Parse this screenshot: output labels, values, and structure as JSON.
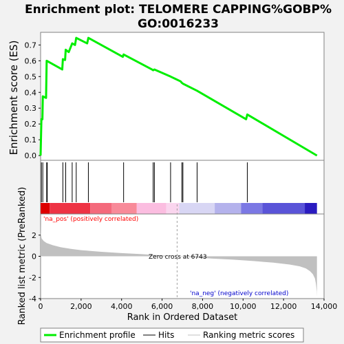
{
  "title_line1": "Enrichment plot: TELOMERE CAPPING%GOBP%",
  "title_line2": "GO:0016233",
  "colors": {
    "enrichment_line": "#00ee00",
    "hits": "#000000",
    "metric_fill": "#c0c0c0",
    "pos_text": "#ff0000",
    "neg_text": "#0000cc",
    "zero_line": "#a0a0a0"
  },
  "chart_data": [
    {
      "type": "line",
      "name": "enrichment-score",
      "ylabel": "Enrichment score (ES)",
      "xlim": [
        0,
        14000
      ],
      "ylim": [
        -0.03,
        0.78
      ],
      "yticks": [
        0.0,
        0.1,
        0.2,
        0.3,
        0.4,
        0.5,
        0.6,
        0.7
      ],
      "ytick_labels": [
        "0.0",
        "0.1",
        "0.2",
        "0.3",
        "0.4",
        "0.5",
        "0.6",
        "0.7"
      ],
      "x": [
        0,
        40,
        90,
        110,
        270,
        300,
        1070,
        1100,
        1210,
        1240,
        1390,
        1530,
        1560,
        1700,
        1760,
        2300,
        2360,
        4060,
        4100,
        5500,
        5560,
        5620,
        6420,
        6910,
        6980,
        7030,
        7730,
        10150,
        10210,
        13650
      ],
      "y": [
        0.0,
        0.23,
        0.23,
        0.375,
        0.365,
        0.6,
        0.545,
        0.61,
        0.605,
        0.67,
        0.655,
        0.7,
        0.71,
        0.7,
        0.745,
        0.71,
        0.745,
        0.625,
        0.64,
        0.545,
        0.54,
        0.545,
        0.5,
        0.47,
        0.46,
        0.455,
        0.41,
        0.23,
        0.26,
        0.0
      ],
      "grid": false
    },
    {
      "type": "hits",
      "name": "hits",
      "x": [
        40,
        110,
        300,
        330,
        1100,
        1240,
        1560,
        1760,
        2360,
        4100,
        5560,
        5620,
        6420,
        6980,
        7030,
        7730,
        10210
      ]
    },
    {
      "type": "heatmap",
      "name": "rank-color-bar",
      "x_edges": [
        0,
        450,
        2450,
        3500,
        4750,
        6200,
        6850,
        8600,
        9900,
        10950,
        13050,
        13650
      ],
      "colors": [
        "#dd0000",
        "#ee3344",
        "#f46a7c",
        "#f88a99",
        "#fbbde0",
        "#fad5ee",
        "#d8d6f4",
        "#b4b2ec",
        "#7b78e4",
        "#5a54d8",
        "#2a1bc0"
      ]
    },
    {
      "type": "area",
      "name": "ranked-list-metric",
      "ylabel": "Ranked list metric (PreRanked)",
      "xlabel": "Rank in Ordered Dataset",
      "xlim": [
        0,
        14000
      ],
      "ylim": [
        -4.0,
        4.0
      ],
      "yticks": [
        -4,
        -2,
        0,
        2
      ],
      "ytick_labels": [
        "-4",
        "-2",
        "0",
        "2"
      ],
      "xticks": [
        0,
        2000,
        4000,
        6000,
        8000,
        10000,
        12000,
        14000
      ],
      "xtick_labels": [
        "0",
        "2,000",
        "4,000",
        "6,000",
        "8,000",
        "10,000",
        "12,000",
        "14,000"
      ],
      "x": [
        0,
        10,
        50,
        150,
        300,
        600,
        1000,
        1500,
        2000,
        3000,
        4000,
        5000,
        6000,
        6743,
        7500,
        8500,
        9500,
        10500,
        11500,
        12300,
        12800,
        13100,
        13300,
        13450,
        13550,
        13600,
        13640,
        13650
      ],
      "y": [
        3.0,
        2.2,
        1.7,
        1.45,
        1.25,
        1.05,
        0.85,
        0.7,
        0.58,
        0.42,
        0.3,
        0.2,
        0.08,
        0.0,
        -0.1,
        -0.22,
        -0.32,
        -0.45,
        -0.6,
        -0.78,
        -0.95,
        -1.15,
        -1.4,
        -1.7,
        -2.1,
        -2.6,
        -3.3,
        -3.8
      ],
      "annotations": {
        "pos": "'na_pos' (positively correlated)",
        "neg": "'na_neg' (negatively correlated)",
        "zero_cross": "Zero cross at 6743"
      },
      "zero_cross": 6743
    }
  ],
  "legend": [
    {
      "label": "Enrichment profile",
      "kind": "thick-line"
    },
    {
      "label": "Hits",
      "kind": "thin-line"
    },
    {
      "label": "Ranking metric scores",
      "kind": "grey-line"
    }
  ]
}
